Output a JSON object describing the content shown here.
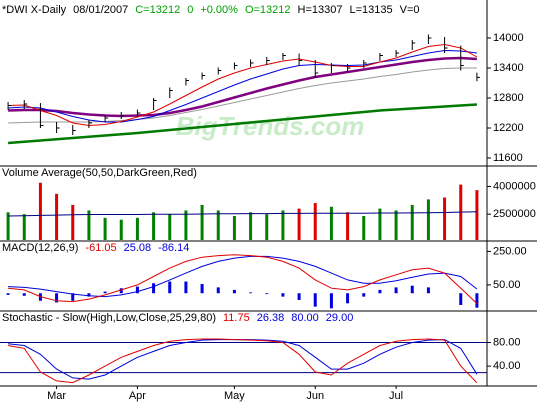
{
  "chart_data": [
    {
      "type": "hlc",
      "header": [
        {
          "text": "*DWI X-Daily",
          "color": "#000000"
        },
        {
          "text": "08/01/2007",
          "color": "#000000"
        },
        {
          "text": "C=13212",
          "color": "#00a000"
        },
        {
          "text": "0",
          "color": "#00a000"
        },
        {
          "text": "+0.00%",
          "color": "#00a000"
        },
        {
          "text": "O=13212",
          "color": "#00a000"
        },
        {
          "text": "H=13307",
          "color": "#000000"
        },
        {
          "text": "L=13135",
          "color": "#000000"
        },
        {
          "text": "V=0",
          "color": "#000000"
        }
      ],
      "watermark": "BigTrends.com",
      "ylim": [
        11460,
        14660
      ],
      "yticks": [
        14000,
        13400,
        12800,
        12200,
        11600
      ],
      "series": [
        {
          "kind": "line",
          "color": "#007a00",
          "width": 2.5,
          "values": [
            11900,
            11925,
            11950,
            11975,
            12000,
            12025,
            12050,
            12075,
            12100,
            12130,
            12160,
            12190,
            12220,
            12250,
            12280,
            12310,
            12340,
            12370,
            12400,
            12430,
            12460,
            12490,
            12520,
            12550,
            12570,
            12590,
            12610,
            12630,
            12650,
            12670
          ]
        },
        {
          "kind": "line",
          "color": "#9a9a9a",
          "width": 1,
          "values": [
            12300,
            12310,
            12320,
            12320,
            12320,
            12320,
            12330,
            12350,
            12370,
            12400,
            12450,
            12510,
            12570,
            12640,
            12710,
            12780,
            12850,
            12920,
            12990,
            13050,
            13100,
            13140,
            13180,
            13230,
            13270,
            13320,
            13360,
            13390,
            13400,
            13400
          ]
        },
        {
          "kind": "line",
          "color": "#800080",
          "width": 2.5,
          "values": [
            12550,
            12560,
            12560,
            12540,
            12500,
            12470,
            12450,
            12440,
            12450,
            12460,
            12500,
            12560,
            12630,
            12720,
            12810,
            12900,
            12990,
            13070,
            13150,
            13220,
            13270,
            13320,
            13370,
            13420,
            13470,
            13520,
            13560,
            13590,
            13600,
            13580
          ]
        },
        {
          "kind": "line",
          "color": "#0000e0",
          "width": 1,
          "values": [
            12600,
            12620,
            12600,
            12520,
            12430,
            12360,
            12320,
            12320,
            12370,
            12430,
            12550,
            12670,
            12800,
            12930,
            13060,
            13180,
            13280,
            13380,
            13450,
            13470,
            13460,
            13450,
            13460,
            13520,
            13560,
            13630,
            13700,
            13750,
            13740,
            13700
          ]
        },
        {
          "kind": "line",
          "color": "#e00000",
          "width": 1,
          "values": [
            12650,
            12660,
            12550,
            12450,
            12300,
            12250,
            12270,
            12330,
            12420,
            12520,
            12680,
            12850,
            13020,
            13180,
            13300,
            13400,
            13470,
            13540,
            13580,
            13520,
            13450,
            13430,
            13430,
            13520,
            13600,
            13720,
            13830,
            13870,
            13800,
            13620
          ]
        },
        {
          "kind": "hlc",
          "color": "#000000",
          "high": [
            12720,
            12760,
            12700,
            12320,
            12260,
            12360,
            12460,
            12520,
            12570,
            12800,
            13010,
            13200,
            13310,
            13410,
            13510,
            13570,
            13620,
            13700,
            13690,
            13560,
            13500,
            13480,
            13560,
            13700,
            13760,
            13960,
            14070,
            14020,
            13850,
            13307
          ],
          "low": [
            12560,
            12580,
            12200,
            12100,
            12060,
            12200,
            12320,
            12380,
            12420,
            12560,
            12800,
            13050,
            13170,
            13270,
            13370,
            13420,
            13460,
            13560,
            13450,
            13200,
            13300,
            13320,
            13400,
            13540,
            13620,
            13760,
            13880,
            13700,
            13350,
            13135
          ],
          "close": [
            12650,
            12680,
            12250,
            12200,
            12150,
            12300,
            12400,
            12450,
            12500,
            12750,
            12950,
            13150,
            13250,
            13350,
            13450,
            13500,
            13550,
            13650,
            13550,
            13300,
            13450,
            13400,
            13500,
            13650,
            13700,
            13900,
            14000,
            13800,
            13450,
            13212
          ]
        }
      ]
    },
    {
      "type": "bar",
      "header": [
        {
          "text": "Volume Average(50,50,DarkGreen,Red)",
          "color": "#000000"
        }
      ],
      "ylim": [
        1100000,
        5000000
      ],
      "yticks": [
        4000000,
        2500000
      ],
      "series": [
        {
          "kind": "bar",
          "colors": [
            "#008000",
            "#008000",
            "#e00000",
            "#e00000",
            "#e00000",
            "#008000",
            "#008000",
            "#008000",
            "#008000",
            "#008000",
            "#008000",
            "#008000",
            "#008000",
            "#008000",
            "#008000",
            "#008000",
            "#008000",
            "#008000",
            "#e00000",
            "#e00000",
            "#008000",
            "#e00000",
            "#008000",
            "#008000",
            "#008000",
            "#008000",
            "#008000",
            "#e00000",
            "#e00000",
            "#e00000"
          ],
          "values": [
            2600000,
            2500000,
            4200000,
            3600000,
            3000000,
            2700000,
            2300000,
            2200000,
            2300000,
            2600000,
            2500000,
            2700000,
            3000000,
            2700000,
            2400000,
            2600000,
            2500000,
            2700000,
            2800000,
            3100000,
            2900000,
            2600000,
            2400000,
            2800000,
            2700000,
            3000000,
            3300000,
            3400000,
            4100000,
            3800000
          ]
        },
        {
          "kind": "line",
          "color": "#000080",
          "width": 1,
          "values": [
            2400000,
            2410000,
            2430000,
            2450000,
            2470000,
            2480000,
            2480000,
            2480000,
            2480000,
            2490000,
            2500000,
            2500000,
            2510000,
            2520000,
            2520000,
            2530000,
            2530000,
            2540000,
            2540000,
            2550000,
            2550000,
            2550000,
            2550000,
            2560000,
            2560000,
            2570000,
            2580000,
            2590000,
            2610000,
            2630000
          ]
        }
      ]
    },
    {
      "type": "line",
      "header": [
        {
          "text": "MACD(12,26,9)",
          "color": "#000000"
        },
        {
          "text": "-61.05",
          "color": "#e00000"
        },
        {
          "text": "25.08",
          "color": "#0000e0"
        },
        {
          "text": "-86.14",
          "color": "#0000e0"
        }
      ],
      "ylim": [
        -100,
        300
      ],
      "yticks": [
        {
          "value": 250,
          "label": "250.00"
        },
        {
          "value": 50,
          "label": "50.00"
        }
      ],
      "series": [
        {
          "kind": "bar",
          "color": "#0000e0",
          "values": [
            -10,
            -15,
            -45,
            -55,
            -45,
            -20,
            10,
            30,
            40,
            60,
            70,
            70,
            55,
            35,
            20,
            5,
            -5,
            -20,
            -40,
            -80,
            -90,
            -60,
            -20,
            20,
            35,
            45,
            35,
            0,
            -70,
            -86.14
          ]
        },
        {
          "kind": "line",
          "color": "#0000e0",
          "width": 1,
          "values": [
            40,
            35,
            25,
            10,
            -5,
            -15,
            -20,
            -10,
            10,
            40,
            80,
            120,
            160,
            190,
            210,
            220,
            220,
            210,
            190,
            160,
            120,
            80,
            60,
            60,
            75,
            95,
            115,
            120,
            100,
            25.08
          ]
        },
        {
          "kind": "line",
          "color": "#e00000",
          "width": 1,
          "values": [
            30,
            20,
            -20,
            -45,
            -50,
            -35,
            -10,
            20,
            50,
            100,
            150,
            190,
            215,
            225,
            230,
            225,
            215,
            190,
            150,
            80,
            30,
            20,
            40,
            80,
            110,
            140,
            150,
            120,
            30,
            -61.05
          ]
        }
      ]
    },
    {
      "type": "line",
      "header": [
        {
          "text": "Stochastic - Slow(High,Low,Close,25,29,80)",
          "color": "#000000"
        },
        {
          "text": "11.75",
          "color": "#e00000"
        },
        {
          "text": "26.38",
          "color": "#0000e0"
        },
        {
          "text": "80.00",
          "color": "#0000e0"
        },
        {
          "text": "29.00",
          "color": "#0000e0"
        }
      ],
      "ylim": [
        8,
        130
      ],
      "yticks": [
        {
          "value": 80,
          "label": "80.00"
        },
        {
          "value": 40,
          "label": "40.00"
        }
      ],
      "levels": [
        80,
        29
      ],
      "level_color": "#000080",
      "categories": [
        null,
        null,
        null,
        "Mar",
        null,
        null,
        null,
        null,
        "Apr",
        null,
        null,
        null,
        null,
        null,
        "May",
        null,
        null,
        null,
        null,
        "Jun",
        null,
        null,
        null,
        null,
        "Jul",
        null,
        null,
        null,
        null,
        null
      ],
      "series": [
        {
          "kind": "line",
          "color": "#0000e0",
          "width": 1,
          "values": [
            78,
            75,
            60,
            35,
            20,
            18,
            25,
            40,
            55,
            65,
            75,
            80,
            84,
            85,
            85,
            85,
            84,
            82,
            75,
            55,
            35,
            35,
            45,
            60,
            72,
            80,
            84,
            85,
            70,
            26.38
          ]
        },
        {
          "kind": "line",
          "color": "#e00000",
          "width": 1,
          "values": [
            75,
            70,
            30,
            15,
            12,
            25,
            40,
            55,
            65,
            75,
            82,
            85,
            86,
            86,
            85,
            84,
            83,
            80,
            60,
            30,
            25,
            45,
            60,
            75,
            82,
            85,
            86,
            84,
            40,
            11.75
          ]
        }
      ]
    }
  ]
}
